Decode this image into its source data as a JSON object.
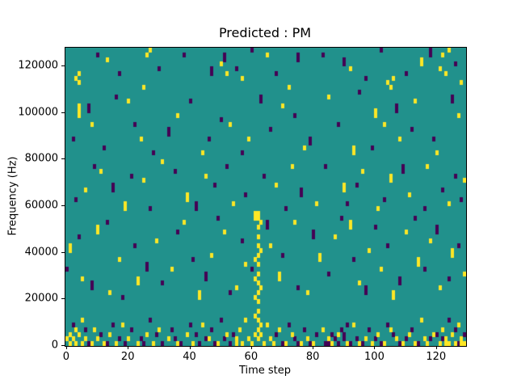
{
  "chart_data": {
    "type": "heatmap",
    "title": "Predicted : PM",
    "xlabel": "Time step",
    "ylabel": "Frequency (Hz)",
    "x_range": [
      -0.5,
      129.5
    ],
    "y_range": [
      0,
      128000
    ],
    "n_cols": 130,
    "n_rows": 64,
    "hz_per_row": 2000,
    "xticks": [
      0,
      20,
      40,
      60,
      80,
      100,
      120
    ],
    "yticks": [
      0,
      20000,
      40000,
      60000,
      80000,
      100000,
      120000
    ],
    "colormap": "viridis",
    "legend": false,
    "grid": false,
    "colors": {
      "background": "#21918c",
      "high": "#fde725",
      "low": "#440154",
      "axis": "#000000",
      "figure_bg": "#ffffff"
    },
    "cells_high": [
      [
        3,
        57
      ],
      [
        4,
        56
      ],
      [
        4,
        58
      ],
      [
        13,
        61
      ],
      [
        25,
        55
      ],
      [
        26,
        62
      ],
      [
        27,
        63
      ],
      [
        50,
        60
      ],
      [
        52,
        58
      ],
      [
        57,
        57
      ],
      [
        65,
        62
      ],
      [
        72,
        55
      ],
      [
        92,
        59
      ],
      [
        104,
        56
      ],
      [
        105,
        55
      ],
      [
        106,
        57
      ],
      [
        115,
        60
      ],
      [
        115,
        61
      ],
      [
        121,
        59
      ],
      [
        122,
        62
      ],
      [
        123,
        58
      ],
      [
        124,
        63
      ],
      [
        128,
        56
      ],
      [
        4,
        49
      ],
      [
        4,
        50
      ],
      [
        4,
        51
      ],
      [
        8,
        47
      ],
      [
        20,
        52
      ],
      [
        24,
        44
      ],
      [
        36,
        49
      ],
      [
        44,
        41
      ],
      [
        53,
        47
      ],
      [
        59,
        44
      ],
      [
        70,
        51
      ],
      [
        77,
        42
      ],
      [
        85,
        53
      ],
      [
        93,
        41
      ],
      [
        93,
        42
      ],
      [
        100,
        49
      ],
      [
        100,
        50
      ],
      [
        103,
        47
      ],
      [
        108,
        44
      ],
      [
        113,
        52
      ],
      [
        120,
        41
      ],
      [
        127,
        49
      ],
      [
        6,
        33
      ],
      [
        11,
        37
      ],
      [
        19,
        29
      ],
      [
        19,
        30
      ],
      [
        25,
        35
      ],
      [
        31,
        39
      ],
      [
        39,
        31
      ],
      [
        39,
        32
      ],
      [
        45,
        36
      ],
      [
        54,
        30
      ],
      [
        68,
        34
      ],
      [
        73,
        38
      ],
      [
        81,
        30
      ],
      [
        90,
        33
      ],
      [
        90,
        34
      ],
      [
        96,
        37
      ],
      [
        101,
        29
      ],
      [
        105,
        35
      ],
      [
        105,
        36
      ],
      [
        111,
        32
      ],
      [
        117,
        38
      ],
      [
        124,
        30
      ],
      [
        129,
        35
      ],
      [
        61,
        2
      ],
      [
        61,
        6
      ],
      [
        61,
        10
      ],
      [
        61,
        14
      ],
      [
        61,
        18
      ],
      [
        61,
        27
      ],
      [
        61,
        28
      ],
      [
        62,
        1
      ],
      [
        62,
        3
      ],
      [
        62,
        5
      ],
      [
        62,
        7
      ],
      [
        62,
        9
      ],
      [
        62,
        11
      ],
      [
        62,
        13
      ],
      [
        62,
        15
      ],
      [
        62,
        17
      ],
      [
        62,
        19
      ],
      [
        62,
        21
      ],
      [
        62,
        23
      ],
      [
        62,
        25
      ],
      [
        62,
        27
      ],
      [
        62,
        28
      ],
      [
        63,
        4
      ],
      [
        63,
        12
      ],
      [
        63,
        20
      ],
      [
        63,
        26
      ],
      [
        1,
        20
      ],
      [
        1,
        21
      ],
      [
        5,
        14
      ],
      [
        10,
        24
      ],
      [
        10,
        25
      ],
      [
        14,
        11
      ],
      [
        17,
        18
      ],
      [
        23,
        13
      ],
      [
        23,
        14
      ],
      [
        29,
        22
      ],
      [
        34,
        16
      ],
      [
        38,
        26
      ],
      [
        43,
        10
      ],
      [
        43,
        11
      ],
      [
        47,
        19
      ],
      [
        51,
        24
      ],
      [
        55,
        12
      ],
      [
        58,
        17
      ],
      [
        66,
        21
      ],
      [
        69,
        14
      ],
      [
        69,
        15
      ],
      [
        74,
        26
      ],
      [
        78,
        11
      ],
      [
        82,
        18
      ],
      [
        82,
        19
      ],
      [
        87,
        23
      ],
      [
        92,
        25
      ],
      [
        92,
        26
      ],
      [
        95,
        13
      ],
      [
        98,
        20
      ],
      [
        102,
        16
      ],
      [
        106,
        10
      ],
      [
        106,
        11
      ],
      [
        110,
        24
      ],
      [
        114,
        17
      ],
      [
        114,
        18
      ],
      [
        118,
        22
      ],
      [
        121,
        12
      ],
      [
        125,
        19
      ],
      [
        125,
        20
      ],
      [
        129,
        15
      ],
      [
        0,
        1
      ],
      [
        1,
        0
      ],
      [
        1,
        2
      ],
      [
        2,
        1
      ],
      [
        3,
        0
      ],
      [
        3,
        3
      ],
      [
        4,
        2
      ],
      [
        5,
        0
      ],
      [
        5,
        5
      ],
      [
        6,
        1
      ],
      [
        8,
        0
      ],
      [
        9,
        3
      ],
      [
        10,
        1
      ],
      [
        12,
        0
      ],
      [
        14,
        2
      ],
      [
        16,
        0
      ],
      [
        18,
        4
      ],
      [
        20,
        1
      ],
      [
        23,
        0
      ],
      [
        26,
        2
      ],
      [
        28,
        0
      ],
      [
        30,
        3
      ],
      [
        33,
        1
      ],
      [
        36,
        0
      ],
      [
        39,
        2
      ],
      [
        41,
        0
      ],
      [
        44,
        4
      ],
      [
        46,
        1
      ],
      [
        49,
        0
      ],
      [
        52,
        2
      ],
      [
        55,
        0
      ],
      [
        55,
        1
      ],
      [
        56,
        3
      ],
      [
        57,
        0
      ],
      [
        58,
        5
      ],
      [
        59,
        1
      ],
      [
        60,
        0
      ],
      [
        63,
        2
      ],
      [
        64,
        0
      ],
      [
        65,
        4
      ],
      [
        66,
        1
      ],
      [
        67,
        0
      ],
      [
        69,
        3
      ],
      [
        71,
        0
      ],
      [
        73,
        2
      ],
      [
        76,
        0
      ],
      [
        78,
        1
      ],
      [
        80,
        0
      ],
      [
        83,
        3
      ],
      [
        85,
        1
      ],
      [
        86,
        0
      ],
      [
        88,
        2
      ],
      [
        91,
        0
      ],
      [
        93,
        4
      ],
      [
        95,
        0
      ],
      [
        97,
        1
      ],
      [
        99,
        0
      ],
      [
        101,
        2
      ],
      [
        103,
        0
      ],
      [
        105,
        3
      ],
      [
        107,
        1
      ],
      [
        109,
        0
      ],
      [
        111,
        2
      ],
      [
        113,
        0
      ],
      [
        115,
        5
      ],
      [
        116,
        1
      ],
      [
        117,
        0
      ],
      [
        119,
        2
      ],
      [
        121,
        0
      ],
      [
        122,
        3
      ],
      [
        123,
        0
      ],
      [
        123,
        1
      ],
      [
        124,
        0
      ],
      [
        125,
        2
      ],
      [
        126,
        0
      ],
      [
        127,
        4
      ],
      [
        128,
        0
      ],
      [
        128,
        1
      ],
      [
        129,
        0
      ]
    ],
    "cells_low": [
      [
        10,
        62
      ],
      [
        17,
        58
      ],
      [
        30,
        59
      ],
      [
        38,
        62
      ],
      [
        47,
        58
      ],
      [
        47,
        59
      ],
      [
        51,
        61
      ],
      [
        51,
        62
      ],
      [
        55,
        59
      ],
      [
        60,
        63
      ],
      [
        68,
        58
      ],
      [
        75,
        61
      ],
      [
        75,
        62
      ],
      [
        83,
        62
      ],
      [
        90,
        60
      ],
      [
        90,
        61
      ],
      [
        97,
        57
      ],
      [
        102,
        63
      ],
      [
        110,
        58
      ],
      [
        118,
        62
      ],
      [
        118,
        63
      ],
      [
        126,
        60
      ],
      [
        2,
        44
      ],
      [
        7,
        50
      ],
      [
        7,
        51
      ],
      [
        12,
        42
      ],
      [
        16,
        53
      ],
      [
        22,
        47
      ],
      [
        28,
        41
      ],
      [
        33,
        45
      ],
      [
        33,
        46
      ],
      [
        40,
        52
      ],
      [
        46,
        44
      ],
      [
        50,
        48
      ],
      [
        57,
        41
      ],
      [
        63,
        52
      ],
      [
        63,
        53
      ],
      [
        66,
        46
      ],
      [
        74,
        49
      ],
      [
        79,
        43
      ],
      [
        79,
        44
      ],
      [
        88,
        47
      ],
      [
        95,
        54
      ],
      [
        99,
        42
      ],
      [
        107,
        50
      ],
      [
        107,
        51
      ],
      [
        112,
        46
      ],
      [
        119,
        44
      ],
      [
        125,
        52
      ],
      [
        125,
        53
      ],
      [
        3,
        31
      ],
      [
        9,
        38
      ],
      [
        15,
        33
      ],
      [
        15,
        34
      ],
      [
        21,
        36
      ],
      [
        27,
        29
      ],
      [
        35,
        37
      ],
      [
        42,
        29
      ],
      [
        42,
        30
      ],
      [
        48,
        34
      ],
      [
        52,
        38
      ],
      [
        58,
        32
      ],
      [
        64,
        36
      ],
      [
        71,
        29
      ],
      [
        76,
        32
      ],
      [
        76,
        33
      ],
      [
        84,
        38
      ],
      [
        91,
        30
      ],
      [
        94,
        34
      ],
      [
        103,
        31
      ],
      [
        109,
        37
      ],
      [
        109,
        38
      ],
      [
        116,
        29
      ],
      [
        122,
        33
      ],
      [
        126,
        36
      ],
      [
        128,
        31
      ],
      [
        0,
        16
      ],
      [
        4,
        23
      ],
      [
        8,
        12
      ],
      [
        8,
        13
      ],
      [
        13,
        26
      ],
      [
        18,
        10
      ],
      [
        22,
        21
      ],
      [
        26,
        16
      ],
      [
        26,
        17
      ],
      [
        31,
        13
      ],
      [
        36,
        24
      ],
      [
        41,
        18
      ],
      [
        45,
        14
      ],
      [
        45,
        15
      ],
      [
        49,
        27
      ],
      [
        53,
        11
      ],
      [
        57,
        22
      ],
      [
        60,
        16
      ],
      [
        65,
        25
      ],
      [
        65,
        26
      ],
      [
        70,
        19
      ],
      [
        75,
        12
      ],
      [
        80,
        23
      ],
      [
        80,
        24
      ],
      [
        85,
        15
      ],
      [
        89,
        27
      ],
      [
        93,
        18
      ],
      [
        97,
        11
      ],
      [
        97,
        12
      ],
      [
        100,
        25
      ],
      [
        104,
        21
      ],
      [
        108,
        13
      ],
      [
        108,
        14
      ],
      [
        113,
        27
      ],
      [
        116,
        16
      ],
      [
        120,
        24
      ],
      [
        120,
        25
      ],
      [
        124,
        14
      ],
      [
        127,
        21
      ],
      [
        2,
        4
      ],
      [
        6,
        3
      ],
      [
        7,
        0
      ],
      [
        11,
        2
      ],
      [
        13,
        0
      ],
      [
        15,
        4
      ],
      [
        17,
        1
      ],
      [
        19,
        0
      ],
      [
        21,
        3
      ],
      [
        24,
        1
      ],
      [
        25,
        0
      ],
      [
        27,
        5
      ],
      [
        29,
        2
      ],
      [
        31,
        0
      ],
      [
        34,
        3
      ],
      [
        35,
        1
      ],
      [
        37,
        0
      ],
      [
        40,
        4
      ],
      [
        42,
        2
      ],
      [
        43,
        0
      ],
      [
        45,
        1
      ],
      [
        47,
        3
      ],
      [
        48,
        0
      ],
      [
        50,
        5
      ],
      [
        51,
        1
      ],
      [
        53,
        0
      ],
      [
        54,
        2
      ],
      [
        68,
        2
      ],
      [
        70,
        0
      ],
      [
        72,
        4
      ],
      [
        74,
        1
      ],
      [
        75,
        0
      ],
      [
        77,
        3
      ],
      [
        79,
        0
      ],
      [
        81,
        2
      ],
      [
        84,
        0
      ],
      [
        85,
        0
      ],
      [
        86,
        2
      ],
      [
        87,
        1
      ],
      [
        88,
        0
      ],
      [
        89,
        3
      ],
      [
        90,
        1
      ],
      [
        90,
        2
      ],
      [
        91,
        4
      ],
      [
        92,
        0
      ],
      [
        94,
        1
      ],
      [
        96,
        0
      ],
      [
        98,
        3
      ],
      [
        100,
        1
      ],
      [
        102,
        0
      ],
      [
        104,
        4
      ],
      [
        106,
        2
      ],
      [
        108,
        0
      ],
      [
        110,
        1
      ],
      [
        112,
        3
      ],
      [
        114,
        0
      ],
      [
        118,
        1
      ],
      [
        120,
        2
      ],
      [
        122,
        1
      ],
      [
        124,
        5
      ],
      [
        126,
        3
      ],
      [
        127,
        0
      ],
      [
        129,
        2
      ]
    ]
  }
}
